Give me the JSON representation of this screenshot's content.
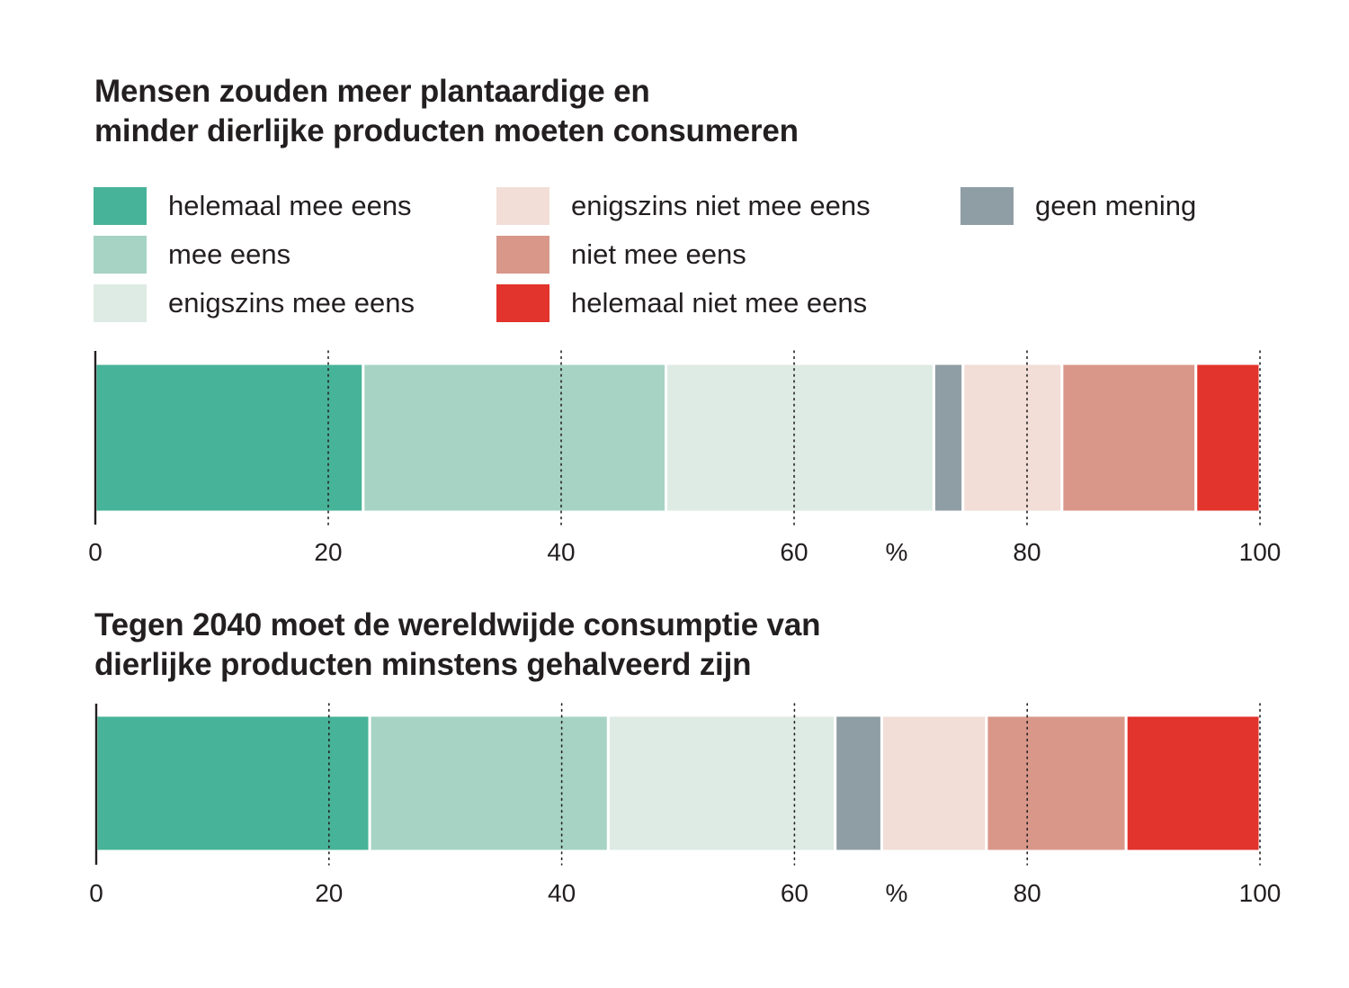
{
  "chart_data": [
    {
      "type": "bar",
      "orientation": "horizontal-stacked",
      "title_lines": [
        "Mensen zouden meer plantaardige en",
        "minder dierlijke producten moeten consumeren"
      ],
      "unit_label": "%",
      "xlim": [
        0,
        100
      ],
      "ticks": [
        "0",
        "20",
        "40",
        "60",
        "80",
        "100"
      ],
      "grid": "dotted-vertical",
      "series": [
        {
          "name": "helemaal mee eens",
          "value": 23
        },
        {
          "name": "mee eens",
          "value": 26
        },
        {
          "name": "enigszins mee eens",
          "value": 23
        },
        {
          "name": "geen mening",
          "value": 2.5
        },
        {
          "name": "enigszins niet mee eens",
          "value": 8.5
        },
        {
          "name": "niet mee eens",
          "value": 11.5
        },
        {
          "name": "helemaal niet mee eens",
          "value": 5.5
        }
      ]
    },
    {
      "type": "bar",
      "orientation": "horizontal-stacked",
      "title_lines": [
        "Tegen 2040 moet de wereldwijde consumptie van",
        "dierlijke producten minstens gehalveerd zijn"
      ],
      "unit_label": "%",
      "xlim": [
        0,
        100
      ],
      "ticks": [
        "0",
        "20",
        "40",
        "60",
        "80",
        "100"
      ],
      "grid": "dotted-vertical",
      "series": [
        {
          "name": "helemaal mee eens",
          "value": 23.5
        },
        {
          "name": "mee eens",
          "value": 20.5
        },
        {
          "name": "enigszins mee eens",
          "value": 19.5
        },
        {
          "name": "geen mening",
          "value": 4
        },
        {
          "name": "enigszins niet mee eens",
          "value": 9
        },
        {
          "name": "niet mee eens",
          "value": 12
        },
        {
          "name": "helemaal niet mee eens",
          "value": 11.5
        }
      ]
    }
  ],
  "legend": [
    {
      "label": "helemaal mee eens",
      "color": "#47b398"
    },
    {
      "label": "mee eens",
      "color": "#a6d3c4"
    },
    {
      "label": "enigszins mee eens",
      "color": "#deebe4"
    },
    {
      "label": "enigszins niet mee eens",
      "color": "#f2ded7"
    },
    {
      "label": "niet mee eens",
      "color": "#d9978a"
    },
    {
      "label": "helemaal niet mee eens",
      "color": "#e2332c"
    },
    {
      "label": "geen mening",
      "color": "#8f9ea4"
    }
  ]
}
